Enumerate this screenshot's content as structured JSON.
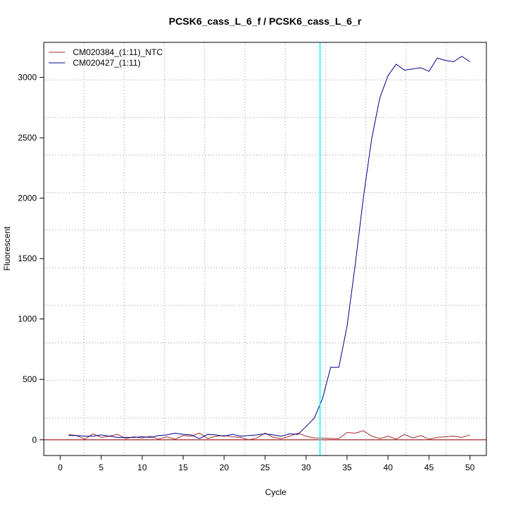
{
  "chart_data": {
    "type": "line",
    "title": "PCSK6_cass_L_6_f / PCSK6_cass_L_6_r",
    "xlabel": "Cycle",
    "ylabel": "Fluorescent",
    "xlim": [
      -2,
      52
    ],
    "ylim": [
      -130,
      3290
    ],
    "xticks": [
      0,
      5,
      10,
      15,
      20,
      25,
      30,
      35,
      40,
      45,
      50
    ],
    "yticks": [
      0,
      500,
      1000,
      1500,
      2000,
      2500,
      3000
    ],
    "grid": true,
    "legend": "top-left",
    "threshold_cycle": 31.7,
    "threshold_color": "#00FFFF",
    "baseline": 0,
    "x": [
      1,
      2,
      3,
      4,
      5,
      6,
      7,
      8,
      9,
      10,
      11,
      12,
      13,
      14,
      15,
      16,
      17,
      18,
      19,
      20,
      21,
      22,
      23,
      24,
      25,
      26,
      27,
      28,
      29,
      30,
      31,
      32,
      33,
      34,
      35,
      36,
      37,
      38,
      39,
      40,
      41,
      42,
      43,
      44,
      45,
      46,
      47,
      48,
      49,
      50
    ],
    "series": [
      {
        "name": "CM020384_(1:11)_NTC",
        "color": "#A52A2A",
        "values": [
          45,
          35,
          5,
          50,
          20,
          30,
          45,
          10,
          25,
          15,
          30,
          5,
          25,
          5,
          35,
          30,
          55,
          10,
          30,
          35,
          25,
          20,
          0,
          15,
          55,
          20,
          10,
          30,
          55,
          30,
          15,
          15,
          10,
          10,
          60,
          55,
          75,
          30,
          10,
          30,
          5,
          45,
          15,
          35,
          5,
          20,
          25,
          30,
          20,
          40
        ]
      },
      {
        "name": "CM020427_(1:11)",
        "color": "#00008B",
        "values": [
          35,
          35,
          30,
          30,
          40,
          30,
          20,
          20,
          20,
          25,
          20,
          35,
          40,
          55,
          45,
          40,
          10,
          45,
          40,
          30,
          45,
          30,
          35,
          40,
          50,
          40,
          30,
          50,
          45,
          110,
          180,
          340,
          600,
          600,
          940,
          1450,
          2010,
          2490,
          2830,
          3015,
          3110,
          3060,
          3070,
          3080,
          3050,
          3160,
          3140,
          3130,
          3175,
          3130
        ]
      }
    ]
  }
}
